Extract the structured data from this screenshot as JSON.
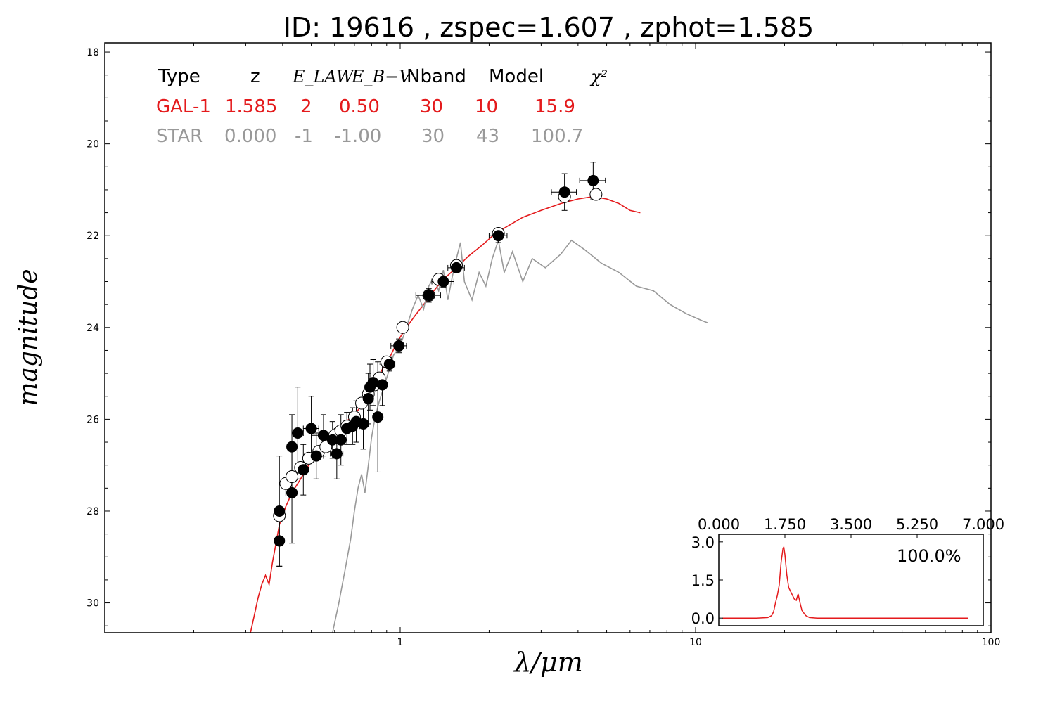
{
  "chart_data": {
    "type": "scatter",
    "title": "ID:  19616 , zspec=1.607 , zphot=1.585",
    "xlabel": "λ/μm",
    "ylabel": "magnitude",
    "x_scale": "log",
    "xlim": [
      0.1,
      100
    ],
    "ylim": [
      30.65,
      17.8
    ],
    "y_ticks": [
      "18",
      "20",
      "22",
      "24",
      "26",
      "28",
      "30"
    ],
    "x_ticks": [
      {
        "value": 1,
        "label": "1"
      },
      {
        "value": 10,
        "label": "10"
      },
      {
        "value": 100,
        "label": "100"
      }
    ],
    "legend_table": {
      "headers": [
        "Type",
        "z",
        "E_LAW",
        "E_B−V",
        "Nband",
        "Model",
        "χ²"
      ],
      "rows": [
        {
          "type": "GAL-1",
          "z": "1.585",
          "elaw": "2",
          "ebv": "0.50",
          "nband": "30",
          "model": "10",
          "chi2": "15.9",
          "color": "#e41a1c"
        },
        {
          "type": "STAR",
          "z": "0.000",
          "elaw": "-1",
          "ebv": "-1.00",
          "nband": "30",
          "model": "43",
          "chi2": "100.7",
          "color": "#999999"
        }
      ]
    },
    "series": [
      {
        "kind": "template-galaxy",
        "color": "#e41a1c",
        "points": [
          [
            0.31,
            30.7
          ],
          [
            0.32,
            30.3
          ],
          [
            0.33,
            29.9
          ],
          [
            0.34,
            29.6
          ],
          [
            0.35,
            29.4
          ],
          [
            0.36,
            29.6
          ],
          [
            0.37,
            29.1
          ],
          [
            0.38,
            28.7
          ],
          [
            0.39,
            28.3
          ],
          [
            0.41,
            27.9
          ],
          [
            0.43,
            27.6
          ],
          [
            0.46,
            27.3
          ],
          [
            0.49,
            27.0
          ],
          [
            0.53,
            26.7
          ],
          [
            0.57,
            26.45
          ],
          [
            0.62,
            26.2
          ],
          [
            0.67,
            26.0
          ],
          [
            0.72,
            25.8
          ],
          [
            0.76,
            25.6
          ],
          [
            0.8,
            25.3
          ],
          [
            0.84,
            25.1
          ],
          [
            0.88,
            24.85
          ],
          [
            0.93,
            24.6
          ],
          [
            0.98,
            24.3
          ],
          [
            1.05,
            24.0
          ],
          [
            1.12,
            23.75
          ],
          [
            1.2,
            23.5
          ],
          [
            1.3,
            23.2
          ],
          [
            1.4,
            22.95
          ],
          [
            1.55,
            22.7
          ],
          [
            1.7,
            22.45
          ],
          [
            1.9,
            22.2
          ],
          [
            2.1,
            21.95
          ],
          [
            2.3,
            21.8
          ],
          [
            2.6,
            21.6
          ],
          [
            3.0,
            21.45
          ],
          [
            3.5,
            21.3
          ],
          [
            4.0,
            21.2
          ],
          [
            4.5,
            21.15
          ],
          [
            5.0,
            21.2
          ],
          [
            5.5,
            21.3
          ],
          [
            6.0,
            21.45
          ],
          [
            6.5,
            21.5
          ]
        ]
      },
      {
        "kind": "template-star",
        "color": "#999999",
        "points": [
          [
            0.59,
            30.65
          ],
          [
            0.62,
            30.0
          ],
          [
            0.65,
            29.3
          ],
          [
            0.68,
            28.6
          ],
          [
            0.7,
            28.0
          ],
          [
            0.72,
            27.5
          ],
          [
            0.74,
            27.2
          ],
          [
            0.76,
            27.6
          ],
          [
            0.78,
            27.0
          ],
          [
            0.8,
            26.4
          ],
          [
            0.82,
            26.0
          ],
          [
            0.85,
            25.6
          ],
          [
            0.88,
            25.3
          ],
          [
            0.92,
            24.9
          ],
          [
            0.95,
            24.6
          ],
          [
            1.0,
            24.4
          ],
          [
            1.05,
            24.0
          ],
          [
            1.1,
            23.6
          ],
          [
            1.15,
            23.3
          ],
          [
            1.2,
            23.6
          ],
          [
            1.25,
            23.1
          ],
          [
            1.3,
            22.9
          ],
          [
            1.35,
            23.2
          ],
          [
            1.4,
            22.75
          ],
          [
            1.45,
            23.4
          ],
          [
            1.5,
            22.9
          ],
          [
            1.55,
            22.5
          ],
          [
            1.6,
            22.15
          ],
          [
            1.65,
            23.0
          ],
          [
            1.75,
            23.4
          ],
          [
            1.85,
            22.8
          ],
          [
            1.95,
            23.1
          ],
          [
            2.05,
            22.5
          ],
          [
            2.15,
            22.1
          ],
          [
            2.25,
            22.8
          ],
          [
            2.4,
            22.35
          ],
          [
            2.6,
            23.0
          ],
          [
            2.8,
            22.5
          ],
          [
            3.1,
            22.7
          ],
          [
            3.5,
            22.4
          ],
          [
            3.8,
            22.1
          ],
          [
            4.2,
            22.3
          ],
          [
            4.8,
            22.6
          ],
          [
            5.5,
            22.8
          ],
          [
            6.3,
            23.1
          ],
          [
            7.2,
            23.2
          ],
          [
            8.2,
            23.5
          ],
          [
            9.3,
            23.7
          ],
          [
            10.5,
            23.85
          ],
          [
            11.0,
            23.9
          ]
        ]
      },
      {
        "kind": "model-magnitudes",
        "color": "#ffffff",
        "points": [
          [
            0.39,
            28.1
          ],
          [
            0.41,
            27.4
          ],
          [
            0.43,
            27.25
          ],
          [
            0.46,
            27.05
          ],
          [
            0.49,
            26.85
          ],
          [
            0.53,
            26.7
          ],
          [
            0.56,
            26.6
          ],
          [
            0.6,
            26.35
          ],
          [
            0.63,
            26.25
          ],
          [
            0.66,
            26.15
          ],
          [
            0.7,
            25.95
          ],
          [
            0.74,
            25.65
          ],
          [
            0.78,
            25.45
          ],
          [
            0.82,
            25.25
          ],
          [
            0.85,
            25.1
          ],
          [
            0.9,
            24.75
          ],
          [
            1.02,
            24.0
          ],
          [
            1.25,
            23.3
          ],
          [
            1.35,
            22.95
          ],
          [
            1.55,
            22.65
          ],
          [
            2.15,
            21.95
          ],
          [
            3.6,
            21.15
          ],
          [
            4.6,
            21.1
          ]
        ]
      },
      {
        "kind": "observed",
        "color": "#000000",
        "points": [
          {
            "x": 0.39,
            "y": 28.0,
            "yerr": 1.2,
            "xerr": 0.0
          },
          {
            "x": 0.39,
            "y": 28.65,
            "yerr": 0.55,
            "xerr": 0.0
          },
          {
            "x": 0.43,
            "y": 27.6,
            "yerr": 1.1,
            "xerr": 0.02
          },
          {
            "x": 0.43,
            "y": 26.6,
            "yerr": 0.7,
            "xerr": 0.0
          },
          {
            "x": 0.45,
            "y": 26.3,
            "yerr": 1.0,
            "xerr": 0.02
          },
          {
            "x": 0.47,
            "y": 27.1,
            "yerr": 0.55,
            "xerr": 0.02
          },
          {
            "x": 0.5,
            "y": 26.2,
            "yerr": 0.7,
            "xerr": 0.03
          },
          {
            "x": 0.52,
            "y": 26.8,
            "yerr": 0.5,
            "xerr": 0.03
          },
          {
            "x": 0.55,
            "y": 26.35,
            "yerr": 0.45,
            "xerr": 0.05
          },
          {
            "x": 0.59,
            "y": 26.45,
            "yerr": 0.4,
            "xerr": 0.04
          },
          {
            "x": 0.61,
            "y": 26.75,
            "yerr": 0.55,
            "xerr": 0.03
          },
          {
            "x": 0.63,
            "y": 26.45,
            "yerr": 0.55,
            "xerr": 0.03
          },
          {
            "x": 0.66,
            "y": 26.2,
            "yerr": 0.35,
            "xerr": 0.04
          },
          {
            "x": 0.69,
            "y": 26.15,
            "yerr": 0.4,
            "xerr": 0.04
          },
          {
            "x": 0.71,
            "y": 26.05,
            "yerr": 0.45,
            "xerr": 0.03
          },
          {
            "x": 0.75,
            "y": 26.1,
            "yerr": 0.55,
            "xerr": 0.03
          },
          {
            "x": 0.78,
            "y": 25.55,
            "yerr": 0.55,
            "xerr": 0.03
          },
          {
            "x": 0.79,
            "y": 25.3,
            "yerr": 0.5,
            "xerr": 0.03
          },
          {
            "x": 0.81,
            "y": 25.2,
            "yerr": 0.5,
            "xerr": 0.03
          },
          {
            "x": 0.84,
            "y": 25.95,
            "yerr": 1.2,
            "xerr": 0.02
          },
          {
            "x": 0.87,
            "y": 25.25,
            "yerr": 0.45,
            "xerr": 0.03
          },
          {
            "x": 0.92,
            "y": 24.8,
            "yerr": 0.15,
            "xerr": 0.04
          },
          {
            "x": 0.99,
            "y": 24.4,
            "yerr": 0.15,
            "xerr": 0.06
          },
          {
            "x": 1.25,
            "y": 23.3,
            "yerr": 0.15,
            "xerr": 0.12
          },
          {
            "x": 1.4,
            "y": 23.0,
            "yerr": 0.12,
            "xerr": 0.12
          },
          {
            "x": 1.55,
            "y": 22.7,
            "yerr": 0.1,
            "xerr": 0.1
          },
          {
            "x": 2.15,
            "y": 22.0,
            "yerr": 0.15,
            "xerr": 0.15
          },
          {
            "x": 3.6,
            "y": 21.05,
            "yerr": 0.4,
            "xerr": 0.35
          },
          {
            "x": 4.5,
            "y": 20.8,
            "yerr": 0.4,
            "xerr": 0.45
          }
        ]
      }
    ],
    "inset": {
      "type": "line",
      "annotation": "100.0%",
      "xlim": [
        0.0,
        7.0
      ],
      "ylim": [
        -0.3,
        3.3
      ],
      "x_ticks": [
        "0.000",
        "1.750",
        "3.500",
        "5.250",
        "7.000"
      ],
      "y_ticks": [
        "3.0",
        "1.5",
        "0.0"
      ],
      "color": "#e41a1c",
      "points": [
        [
          0.1,
          0.0
        ],
        [
          1.0,
          0.0
        ],
        [
          1.3,
          0.02
        ],
        [
          1.4,
          0.1
        ],
        [
          1.45,
          0.25
        ],
        [
          1.5,
          0.6
        ],
        [
          1.55,
          0.9
        ],
        [
          1.6,
          1.3
        ],
        [
          1.65,
          2.2
        ],
        [
          1.7,
          2.75
        ],
        [
          1.72,
          2.8
        ],
        [
          1.75,
          2.5
        ],
        [
          1.8,
          1.7
        ],
        [
          1.85,
          1.2
        ],
        [
          1.9,
          1.05
        ],
        [
          1.95,
          0.9
        ],
        [
          2.0,
          0.75
        ],
        [
          2.05,
          0.7
        ],
        [
          2.1,
          0.95
        ],
        [
          2.15,
          0.6
        ],
        [
          2.2,
          0.3
        ],
        [
          2.3,
          0.1
        ],
        [
          2.4,
          0.02
        ],
        [
          2.6,
          0.0
        ],
        [
          6.6,
          0.0
        ]
      ]
    }
  }
}
